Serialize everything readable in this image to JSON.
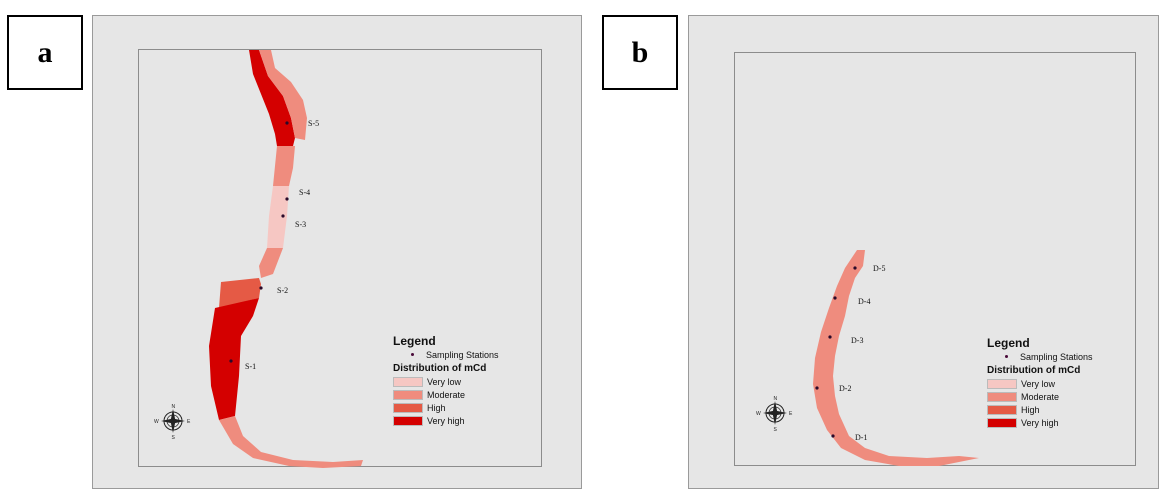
{
  "panels": [
    {
      "tag": "a",
      "stations": [
        "S-5",
        "S-4",
        "S-3",
        "S-2",
        "S-1"
      ],
      "legend": {
        "title": "Legend",
        "point_label": "Sampling Stations",
        "subtitle": "Distribution of  mCd",
        "classes": [
          {
            "label": "Very low",
            "color": "#f6c7c3"
          },
          {
            "label": "Moderate",
            "color": "#ef8c7e"
          },
          {
            "label": "High",
            "color": "#e55a45"
          },
          {
            "label": "Very high",
            "color": "#d40000"
          }
        ]
      },
      "compass": [
        "N",
        "S",
        "E",
        "W"
      ]
    },
    {
      "tag": "b",
      "stations": [
        "D-5",
        "D-4",
        "D-3",
        "D-2",
        "D-1"
      ],
      "legend": {
        "title": "Legend",
        "point_label": "Sampling Stations",
        "subtitle": "Distribution of  mCd",
        "classes": [
          {
            "label": "Very low",
            "color": "#f6c7c3"
          },
          {
            "label": "Moderate",
            "color": "#ef8c7e"
          },
          {
            "label": "High",
            "color": "#e55a45"
          },
          {
            "label": "Very high",
            "color": "#d40000"
          }
        ]
      },
      "compass": [
        "N",
        "S",
        "E",
        "W"
      ]
    }
  ]
}
